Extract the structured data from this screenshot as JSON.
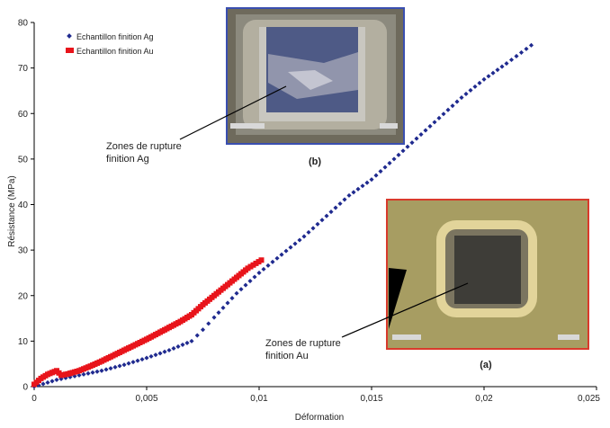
{
  "chart_data": {
    "type": "scatter",
    "xlabel": "Déformation",
    "ylabel": "Résistance (MPa)",
    "xlim": [
      0,
      0.025
    ],
    "ylim": [
      0,
      80
    ],
    "x_ticks": [
      "0",
      "0,005",
      "0,01",
      "0,015",
      "0,02",
      "0,025"
    ],
    "y_ticks": [
      "0",
      "10",
      "20",
      "30",
      "40",
      "50",
      "60",
      "70",
      "80"
    ],
    "legend_position": "top-left",
    "series": [
      {
        "name": "Echantillon finition Ag",
        "color": "#1f2a8f",
        "marker": "diamond",
        "x": [
          0,
          0.001,
          0.002,
          0.003,
          0.004,
          0.005,
          0.006,
          0.007,
          0.0075,
          0.008,
          0.009,
          0.01,
          0.011,
          0.012,
          0.013,
          0.014,
          0.015,
          0.016,
          0.017,
          0.018,
          0.019,
          0.02,
          0.021,
          0.0221
        ],
        "y": [
          0,
          1.5,
          2.5,
          3.5,
          4.8,
          6.3,
          8.0,
          10.0,
          12.5,
          15.2,
          20.5,
          25.0,
          29.0,
          33.0,
          37.5,
          42.0,
          45.5,
          50.0,
          54.5,
          59.0,
          63.5,
          67.5,
          71.0,
          75.0
        ]
      },
      {
        "name": "Echantillon finition Au",
        "color": "#e8141b",
        "marker": "square",
        "x": [
          0,
          0.0003,
          0.0006,
          0.0009,
          0.001,
          0.0012,
          0.0015,
          0.002,
          0.0025,
          0.003,
          0.0035,
          0.004,
          0.0045,
          0.005,
          0.0055,
          0.006,
          0.0065,
          0.007,
          0.0075,
          0.008,
          0.0085,
          0.009,
          0.0095,
          0.0101
        ],
        "y": [
          0.5,
          1.8,
          2.7,
          3.3,
          3.5,
          2.5,
          2.8,
          3.5,
          4.5,
          5.6,
          6.8,
          8.0,
          9.2,
          10.4,
          11.7,
          13.0,
          14.3,
          15.8,
          18.0,
          20.0,
          22.0,
          24.0,
          26.0,
          27.8
        ]
      }
    ],
    "annotations": [
      {
        "id": "b",
        "text_line1": "Zones de rupture",
        "text_line2": "finition Ag",
        "caption": "(b)"
      },
      {
        "id": "a",
        "text_line1": "Zones de rupture",
        "text_line2": "finition Au",
        "caption": "(a)"
      }
    ]
  }
}
